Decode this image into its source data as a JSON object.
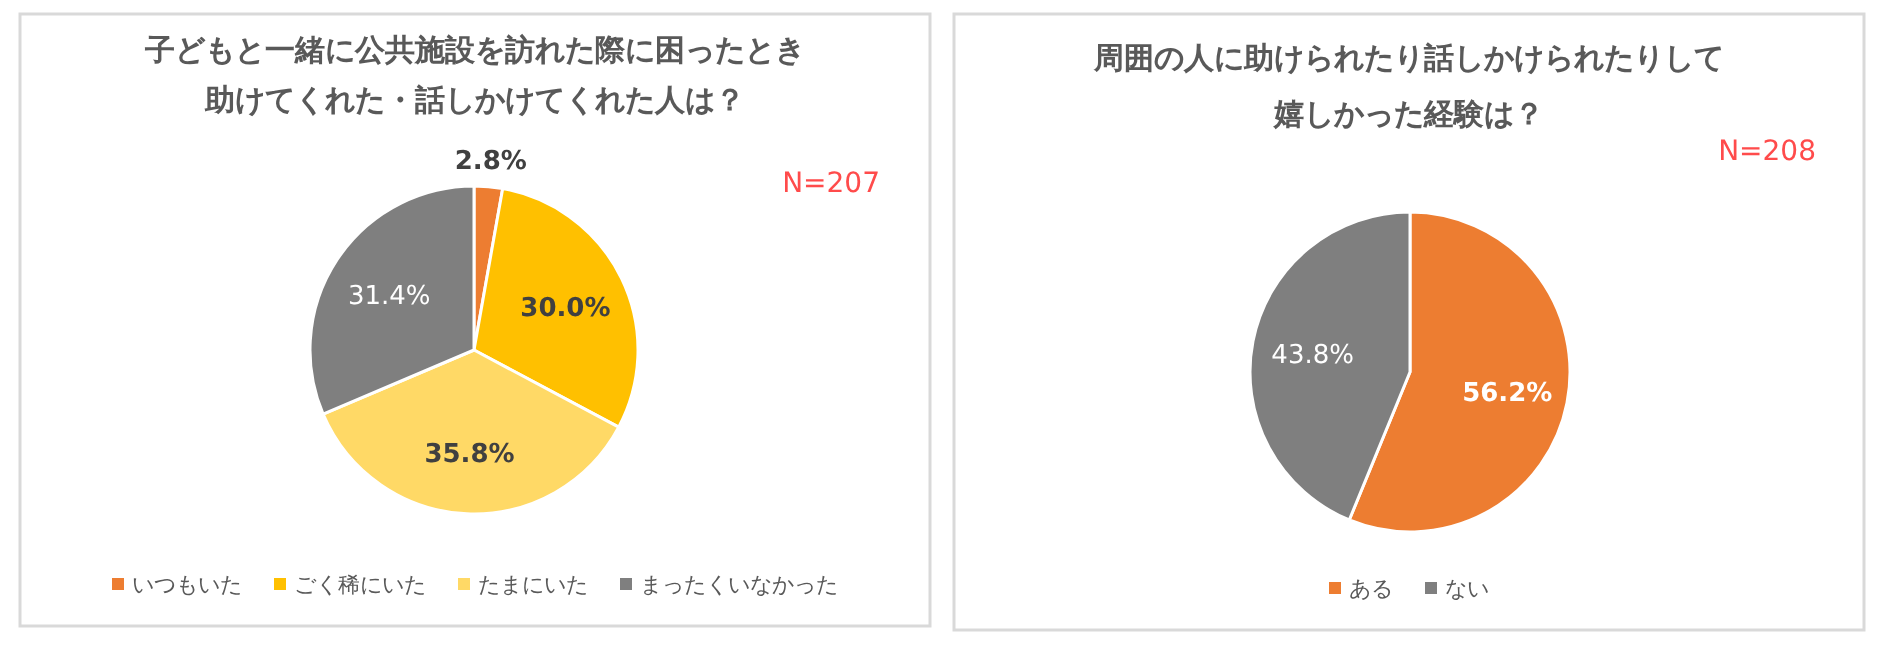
{
  "chart_data": [
    {
      "type": "pie",
      "title": "子どもと一緒に公共施設を訪れた際に困ったとき助けてくれた・話しかけてくれた人は？",
      "annotations": [
        "N=207"
      ],
      "categories": [
        "いつもいた",
        "ごく稀にいた",
        "たまにいた",
        "まったくいなかった"
      ],
      "values": [
        2.8,
        30.0,
        35.8,
        31.4
      ],
      "value_labels": [
        "2.8%",
        "30.0%",
        "35.8%",
        "31.4%"
      ],
      "colors": [
        "#ed7d31",
        "#ffc000",
        "#ffd966",
        "#7f7f7f"
      ],
      "legend": "bottom"
    },
    {
      "type": "pie",
      "title": "周囲の人に助けられたり話しかけられたりして嬉しかった経験は？",
      "annotations": [
        "N=208"
      ],
      "categories": [
        "ある",
        "ない"
      ],
      "values": [
        56.2,
        43.8
      ],
      "value_labels": [
        "56.2%",
        "43.8%"
      ],
      "colors": [
        "#ed7d31",
        "#7f7f7f"
      ],
      "legend": "bottom"
    }
  ]
}
